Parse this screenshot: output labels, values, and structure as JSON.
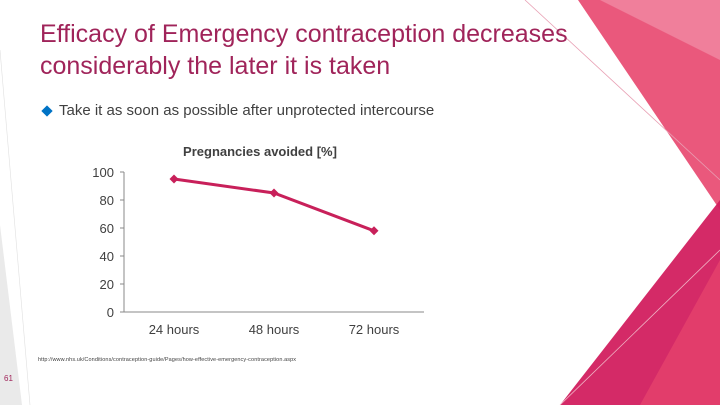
{
  "slide": {
    "title": "Efficacy of Emergency contraception decreases considerably the later it is taken",
    "bullet": "Take it as soon as possible after unprotected intercourse",
    "source": "http://www.nhs.uk/Conditions/contraception-guide/Pages/how-effective-emergency-contraception.aspx",
    "slide_number": "61"
  },
  "colors": {
    "title": "#a0245a",
    "series": "#c8205a",
    "bullet_icon": "#0073c5",
    "deco_pink": "#e8466e",
    "deco_magenta": "#d21f5f"
  },
  "chart_data": {
    "type": "line",
    "title": "Pregnancies avoided [%]",
    "categories": [
      "24 hours",
      "48 hours",
      "72 hours"
    ],
    "series": [
      {
        "values": [
          95,
          85,
          58
        ]
      }
    ],
    "y_ticks": [
      "100",
      "80",
      "60",
      "40",
      "20",
      "0"
    ],
    "ylim": [
      0,
      100
    ],
    "grid": false,
    "legend": "none"
  }
}
